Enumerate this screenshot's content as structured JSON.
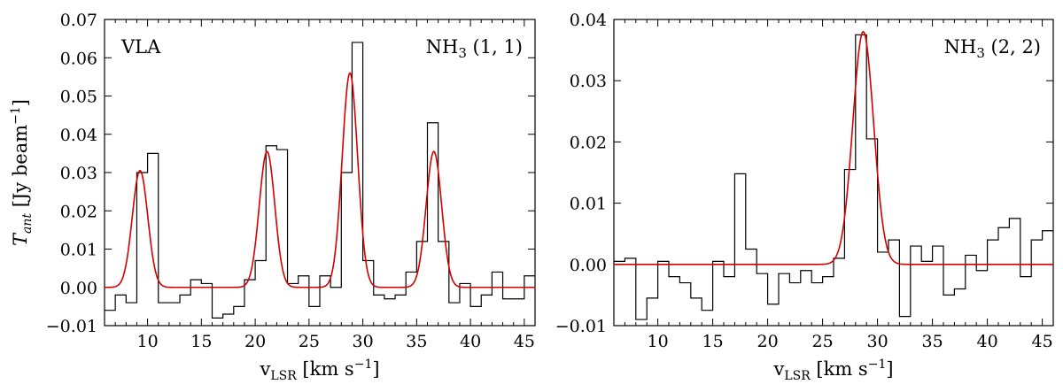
{
  "chart_data": [
    {
      "type": "line",
      "title": "",
      "annotations": [
        "VLA",
        "NH3 (1, 1)"
      ],
      "xlabel": "vLSR [km s−1]",
      "ylabel": "Tant [Jy beam−1]",
      "xlim": [
        6,
        46
      ],
      "ylim": [
        -0.01,
        0.07
      ],
      "xticks": [
        "10",
        "15",
        "20",
        "25",
        "30",
        "35",
        "40",
        "45"
      ],
      "yticks": [
        "−0.01",
        "0.00",
        "0.01",
        "0.02",
        "0.03",
        "0.04",
        "0.05",
        "0.06",
        "0.07"
      ],
      "series": [
        {
          "type": "step",
          "color": "#000000",
          "x": [
            6,
            7,
            8,
            9,
            10,
            11,
            12,
            13,
            14,
            15,
            16,
            17,
            18,
            19,
            20,
            21,
            22,
            23,
            24,
            25,
            26,
            27,
            28,
            29,
            30,
            31,
            32,
            33,
            34,
            35,
            36,
            37,
            38,
            39,
            40,
            41,
            42,
            43,
            44,
            45
          ],
          "values": [
            -0.006,
            -0.002,
            -0.004,
            0.03,
            0.035,
            -0.004,
            -0.004,
            -0.002,
            0.002,
            0.001,
            -0.008,
            -0.007,
            -0.005,
            0.002,
            0.007,
            0.037,
            0.036,
            0.001,
            0.003,
            -0.005,
            0.003,
            0.0,
            0.03,
            0.064,
            0.007,
            -0.002,
            -0.003,
            -0.002,
            0.004,
            0.012,
            0.043,
            0.012,
            -0.004,
            0.001,
            -0.005,
            -0.002,
            0.004,
            -0.003,
            -0.003,
            0.003
          ]
        },
        {
          "type": "gaussian-fit",
          "color": "#d40000",
          "components": [
            {
              "center": 9.3,
              "amplitude": 0.0305,
              "sigma": 0.72
            },
            {
              "center": 21.1,
              "amplitude": 0.0355,
              "sigma": 0.72
            },
            {
              "center": 28.8,
              "amplitude": 0.056,
              "sigma": 0.72
            },
            {
              "center": 36.6,
              "amplitude": 0.0355,
              "sigma": 0.72
            }
          ]
        }
      ]
    },
    {
      "type": "line",
      "title": "",
      "annotations": [
        "NH3 (2, 2)"
      ],
      "xlabel": "vLSR [km s−1]",
      "ylabel": "",
      "xlim": [
        6,
        46
      ],
      "ylim": [
        -0.01,
        0.04
      ],
      "xticks": [
        "10",
        "15",
        "20",
        "25",
        "30",
        "35",
        "40",
        "45"
      ],
      "yticks": [
        "−0.01",
        "0.00",
        "0.01",
        "0.02",
        "0.03",
        "0.04"
      ],
      "series": [
        {
          "type": "step",
          "color": "#000000",
          "x": [
            6,
            7,
            8,
            9,
            10,
            11,
            12,
            13,
            14,
            15,
            16,
            17,
            18,
            19,
            20,
            21,
            22,
            23,
            24,
            25,
            26,
            27,
            28,
            29,
            30,
            31,
            32,
            33,
            34,
            35,
            36,
            37,
            38,
            39,
            40,
            41,
            42,
            43,
            44,
            45
          ],
          "values": [
            0.0005,
            0.001,
            -0.009,
            -0.0055,
            0.0005,
            -0.002,
            -0.003,
            -0.0055,
            -0.0075,
            0.0005,
            -0.002,
            0.0148,
            0.0025,
            -0.0015,
            -0.0065,
            -0.0015,
            -0.003,
            -0.001,
            -0.003,
            -0.002,
            0.001,
            0.0155,
            0.0375,
            0.0205,
            0.002,
            0.004,
            -0.0085,
            0.003,
            0.0005,
            0.003,
            -0.005,
            -0.004,
            0.0015,
            -0.001,
            0.004,
            0.006,
            0.0075,
            -0.002,
            0.004,
            0.0055
          ]
        },
        {
          "type": "gaussian-fit",
          "color": "#d40000",
          "components": [
            {
              "center": 28.7,
              "amplitude": 0.038,
              "sigma": 0.95
            }
          ]
        }
      ]
    }
  ]
}
